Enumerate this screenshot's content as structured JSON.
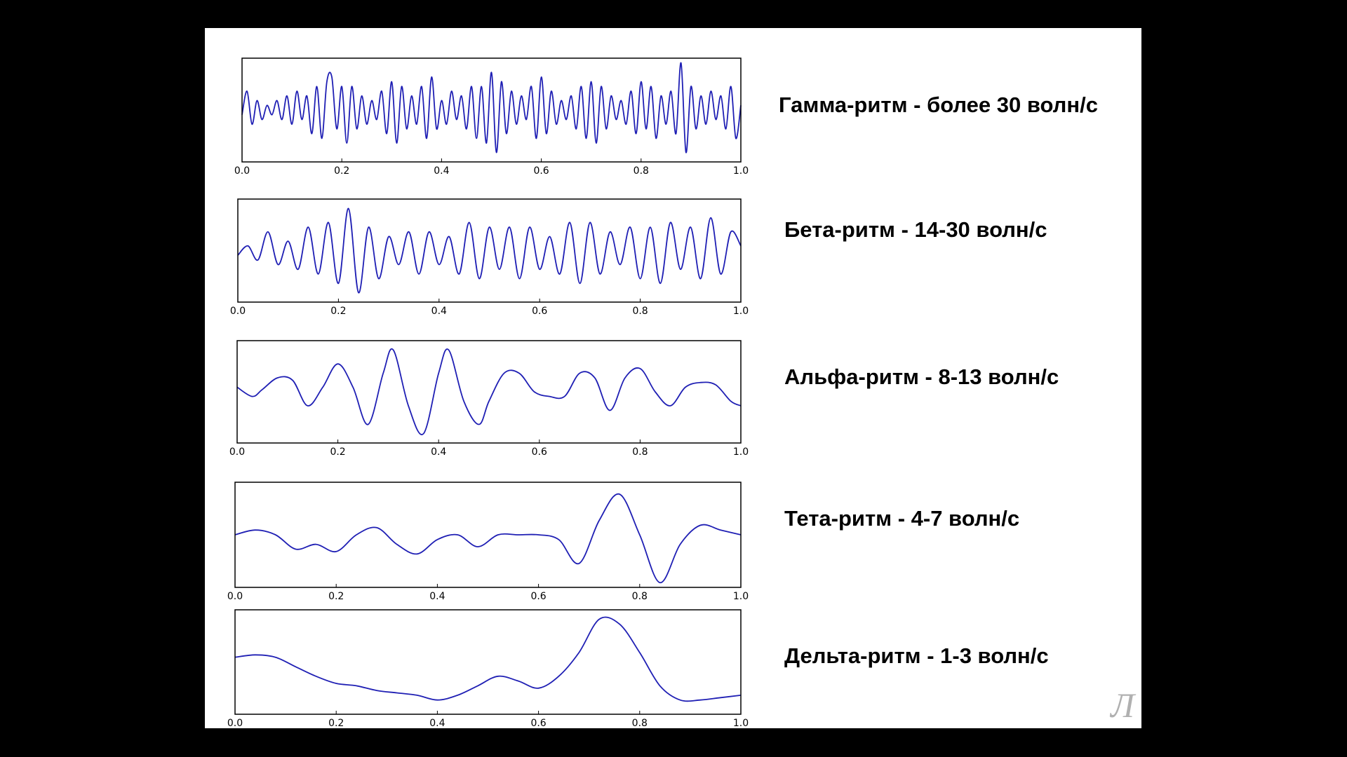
{
  "slide": {
    "logo_text": "Л",
    "labels": [
      "Гамма-ритм - более 30 волн/с",
      "Бета-ритм - 14-30 волн/с",
      "Альфа-ритм - 8-13 волн/с",
      "Тета-ритм - 4-7 волн/с",
      "Дельта-ритм - 1-3 волн/с"
    ]
  },
  "colors": {
    "line": "#1f1fb4",
    "frame": "#000000",
    "background": "#ffffff"
  },
  "chart_data": [
    {
      "type": "line",
      "xlim": [
        0,
        1
      ],
      "ylim": [
        -1.1,
        1.1
      ],
      "x_ticks": [
        "0.0",
        "0.2",
        "0.4",
        "0.6",
        "0.8",
        "1.0"
      ],
      "grid": false,
      "series": [
        {
          "x": [
            0,
            0.01,
            0.02,
            0.03,
            0.04,
            0.05,
            0.06,
            0.07,
            0.08,
            0.09,
            0.1,
            0.11,
            0.12,
            0.13,
            0.14,
            0.15,
            0.16,
            0.17,
            0.18,
            0.19,
            0.2,
            0.21,
            0.22,
            0.23,
            0.24,
            0.25,
            0.26,
            0.27,
            0.28,
            0.29,
            0.3,
            0.31,
            0.32,
            0.33,
            0.34,
            0.35,
            0.36,
            0.37,
            0.38,
            0.39,
            0.4,
            0.41,
            0.42,
            0.43,
            0.44,
            0.45,
            0.46,
            0.47,
            0.48,
            0.49,
            0.5,
            0.51,
            0.52,
            0.53,
            0.54,
            0.55,
            0.56,
            0.57,
            0.58,
            0.59,
            0.6,
            0.61,
            0.62,
            0.63,
            0.64,
            0.65,
            0.66,
            0.67,
            0.68,
            0.69,
            0.7,
            0.71,
            0.72,
            0.73,
            0.74,
            0.75,
            0.76,
            0.77,
            0.78,
            0.79,
            0.8,
            0.81,
            0.82,
            0.83,
            0.84,
            0.85,
            0.86,
            0.87,
            0.88,
            0.89,
            0.9,
            0.91,
            0.92,
            0.93,
            0.94,
            0.95,
            0.96,
            0.97,
            0.98,
            0.99,
            1.0
          ],
          "y": [
            -0.1,
            0.4,
            -0.3,
            0.2,
            -0.2,
            0.1,
            -0.1,
            0.2,
            -0.2,
            0.3,
            -0.3,
            0.4,
            -0.2,
            0.3,
            -0.5,
            0.5,
            -0.6,
            0.6,
            0.7,
            -0.4,
            0.5,
            -0.7,
            0.5,
            -0.4,
            0.3,
            -0.3,
            0.2,
            -0.2,
            0.4,
            -0.5,
            0.6,
            -0.7,
            0.5,
            -0.4,
            0.3,
            -0.3,
            0.5,
            -0.6,
            0.7,
            -0.4,
            0.2,
            -0.3,
            0.4,
            -0.2,
            0.3,
            -0.4,
            0.5,
            -0.6,
            0.5,
            -0.7,
            0.8,
            -0.9,
            0.6,
            -0.5,
            0.4,
            -0.3,
            0.3,
            -0.2,
            0.5,
            -0.6,
            0.7,
            -0.5,
            0.4,
            -0.3,
            0.2,
            -0.2,
            0.3,
            -0.4,
            0.5,
            -0.6,
            0.6,
            -0.7,
            0.5,
            -0.4,
            0.3,
            -0.2,
            0.2,
            -0.3,
            0.4,
            -0.5,
            0.6,
            -0.4,
            0.5,
            -0.6,
            0.3,
            -0.3,
            0.4,
            -0.5,
            1.0,
            -0.9,
            0.5,
            -0.4,
            0.3,
            -0.3,
            0.4,
            -0.2,
            0.3,
            -0.4,
            0.5,
            -0.6,
            0.1
          ]
        }
      ]
    },
    {
      "type": "line",
      "xlim": [
        0,
        1
      ],
      "ylim": [
        -1.1,
        1.1
      ],
      "x_ticks": [
        "0.0",
        "0.2",
        "0.4",
        "0.6",
        "0.8",
        "1.0"
      ],
      "grid": false,
      "series": [
        {
          "x": [
            0,
            0.02,
            0.04,
            0.06,
            0.08,
            0.1,
            0.12,
            0.14,
            0.16,
            0.18,
            0.2,
            0.22,
            0.24,
            0.26,
            0.28,
            0.3,
            0.32,
            0.34,
            0.36,
            0.38,
            0.4,
            0.42,
            0.44,
            0.46,
            0.48,
            0.5,
            0.52,
            0.54,
            0.56,
            0.58,
            0.6,
            0.62,
            0.64,
            0.66,
            0.68,
            0.7,
            0.72,
            0.74,
            0.76,
            0.78,
            0.8,
            0.82,
            0.84,
            0.86,
            0.88,
            0.9,
            0.92,
            0.94,
            0.96,
            0.98,
            1.0
          ],
          "y": [
            -0.1,
            0.1,
            -0.2,
            0.4,
            -0.3,
            0.2,
            -0.4,
            0.5,
            -0.5,
            0.6,
            -0.7,
            0.9,
            -0.9,
            0.5,
            -0.6,
            0.3,
            -0.3,
            0.4,
            -0.5,
            0.4,
            -0.3,
            0.3,
            -0.5,
            0.6,
            -0.6,
            0.5,
            -0.4,
            0.5,
            -0.6,
            0.5,
            -0.4,
            0.3,
            -0.5,
            0.6,
            -0.7,
            0.6,
            -0.5,
            0.4,
            -0.3,
            0.5,
            -0.6,
            0.5,
            -0.7,
            0.6,
            -0.4,
            0.5,
            -0.6,
            0.7,
            -0.5,
            0.4,
            0.1
          ]
        }
      ]
    },
    {
      "type": "line",
      "xlim": [
        0,
        1
      ],
      "ylim": [
        -1.1,
        1.1
      ],
      "x_ticks": [
        "0.0",
        "0.2",
        "0.4",
        "0.6",
        "0.8",
        "1.0"
      ],
      "grid": false,
      "series": [
        {
          "x": [
            0,
            0.03,
            0.05,
            0.08,
            0.11,
            0.14,
            0.17,
            0.2,
            0.23,
            0.26,
            0.29,
            0.31,
            0.34,
            0.37,
            0.4,
            0.42,
            0.45,
            0.48,
            0.5,
            0.53,
            0.56,
            0.59,
            0.62,
            0.65,
            0.68,
            0.71,
            0.74,
            0.77,
            0.8,
            0.83,
            0.86,
            0.89,
            0.92,
            0.95,
            0.98,
            1.0
          ],
          "y": [
            0.1,
            -0.1,
            0.05,
            0.3,
            0.25,
            -0.3,
            0.1,
            0.6,
            0.1,
            -0.7,
            0.4,
            0.9,
            -0.3,
            -0.9,
            0.4,
            0.9,
            -0.2,
            -0.7,
            -0.2,
            0.4,
            0.4,
            0.0,
            -0.1,
            -0.1,
            0.4,
            0.3,
            -0.4,
            0.3,
            0.5,
            0.0,
            -0.3,
            0.1,
            0.2,
            0.15,
            -0.2,
            -0.3
          ]
        }
      ]
    },
    {
      "type": "line",
      "xlim": [
        0,
        1
      ],
      "ylim": [
        -1.1,
        1.1
      ],
      "x_ticks": [
        "0.0",
        "0.2",
        "0.4",
        "0.6",
        "0.8",
        "1.0"
      ],
      "grid": false,
      "series": [
        {
          "x": [
            0,
            0.04,
            0.08,
            0.12,
            0.16,
            0.2,
            0.24,
            0.28,
            0.32,
            0.36,
            0.4,
            0.44,
            0.48,
            0.52,
            0.56,
            0.6,
            0.64,
            0.68,
            0.72,
            0.76,
            0.8,
            0.84,
            0.88,
            0.92,
            0.96,
            1.0
          ],
          "y": [
            0.0,
            0.1,
            0.0,
            -0.3,
            -0.2,
            -0.35,
            0.0,
            0.15,
            -0.2,
            -0.4,
            -0.1,
            0.0,
            -0.25,
            0.0,
            0.0,
            0.0,
            -0.1,
            -0.6,
            0.3,
            0.85,
            0.0,
            -1.0,
            -0.2,
            0.2,
            0.1,
            0.0
          ]
        }
      ]
    },
    {
      "type": "line",
      "xlim": [
        0,
        1
      ],
      "ylim": [
        -1.1,
        1.1
      ],
      "x_ticks": [
        "0.0",
        "0.2",
        "0.4",
        "0.6",
        "0.8",
        "1.0"
      ],
      "grid": false,
      "series": [
        {
          "x": [
            0,
            0.04,
            0.08,
            0.12,
            0.16,
            0.2,
            0.24,
            0.28,
            0.32,
            0.36,
            0.4,
            0.44,
            0.48,
            0.52,
            0.56,
            0.6,
            0.64,
            0.68,
            0.72,
            0.76,
            0.8,
            0.84,
            0.88,
            0.92,
            0.96,
            1.0
          ],
          "y": [
            0.1,
            0.15,
            0.1,
            -0.1,
            -0.3,
            -0.45,
            -0.5,
            -0.6,
            -0.65,
            -0.7,
            -0.8,
            -0.7,
            -0.5,
            -0.3,
            -0.4,
            -0.55,
            -0.3,
            0.2,
            0.9,
            0.8,
            0.2,
            -0.5,
            -0.8,
            -0.8,
            -0.75,
            -0.7
          ]
        }
      ]
    }
  ]
}
